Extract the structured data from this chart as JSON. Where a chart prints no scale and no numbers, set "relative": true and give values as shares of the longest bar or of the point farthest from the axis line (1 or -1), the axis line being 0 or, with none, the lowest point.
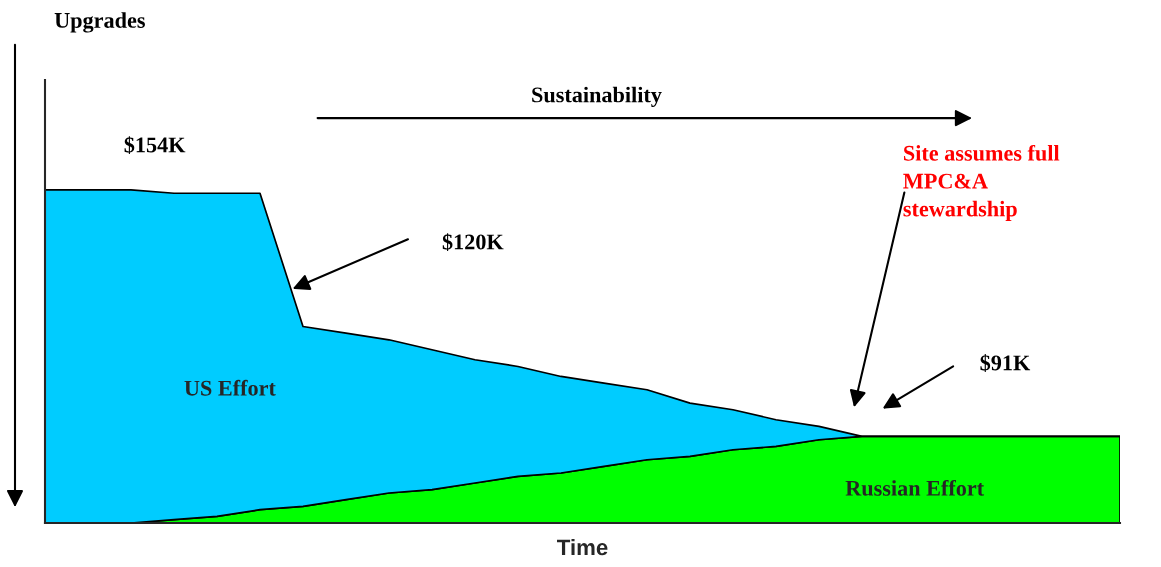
{
  "chart_data": {
    "type": "area",
    "stacked": true,
    "relative": true,
    "xlabel": "Time",
    "categories": [
      null,
      null,
      null,
      null,
      null,
      null,
      null,
      null,
      null,
      null,
      null,
      null,
      null,
      null,
      null,
      null,
      null,
      null,
      null,
      null,
      null,
      null,
      null,
      null,
      null,
      null
    ],
    "series": [
      {
        "name": "Russian Effort",
        "color": "#00ff00",
        "values": [
          0,
          0,
          0,
          0.01,
          0.02,
          0.04,
          0.05,
          0.07,
          0.09,
          0.1,
          0.12,
          0.14,
          0.15,
          0.17,
          0.19,
          0.2,
          0.22,
          0.23,
          0.25,
          0.26,
          0.26,
          0.26,
          0.26,
          0.26,
          0.26,
          0.26
        ]
      },
      {
        "name": "US Effort",
        "color": "#00ccff",
        "values": [
          1.0,
          1.0,
          1.0,
          0.98,
          0.97,
          0.95,
          0.54,
          0.5,
          0.46,
          0.42,
          0.37,
          0.33,
          0.29,
          0.25,
          0.21,
          0.16,
          0.12,
          0.08,
          0.04,
          0,
          0,
          0,
          0,
          0,
          0,
          0
        ]
      }
    ],
    "annotations": [
      "$154K",
      "$120K",
      "Site assumes full\nMPC&A\nstewardship",
      "$91K",
      "Sustainability",
      "Upgrades"
    ],
    "legend": false,
    "grid": false
  }
}
